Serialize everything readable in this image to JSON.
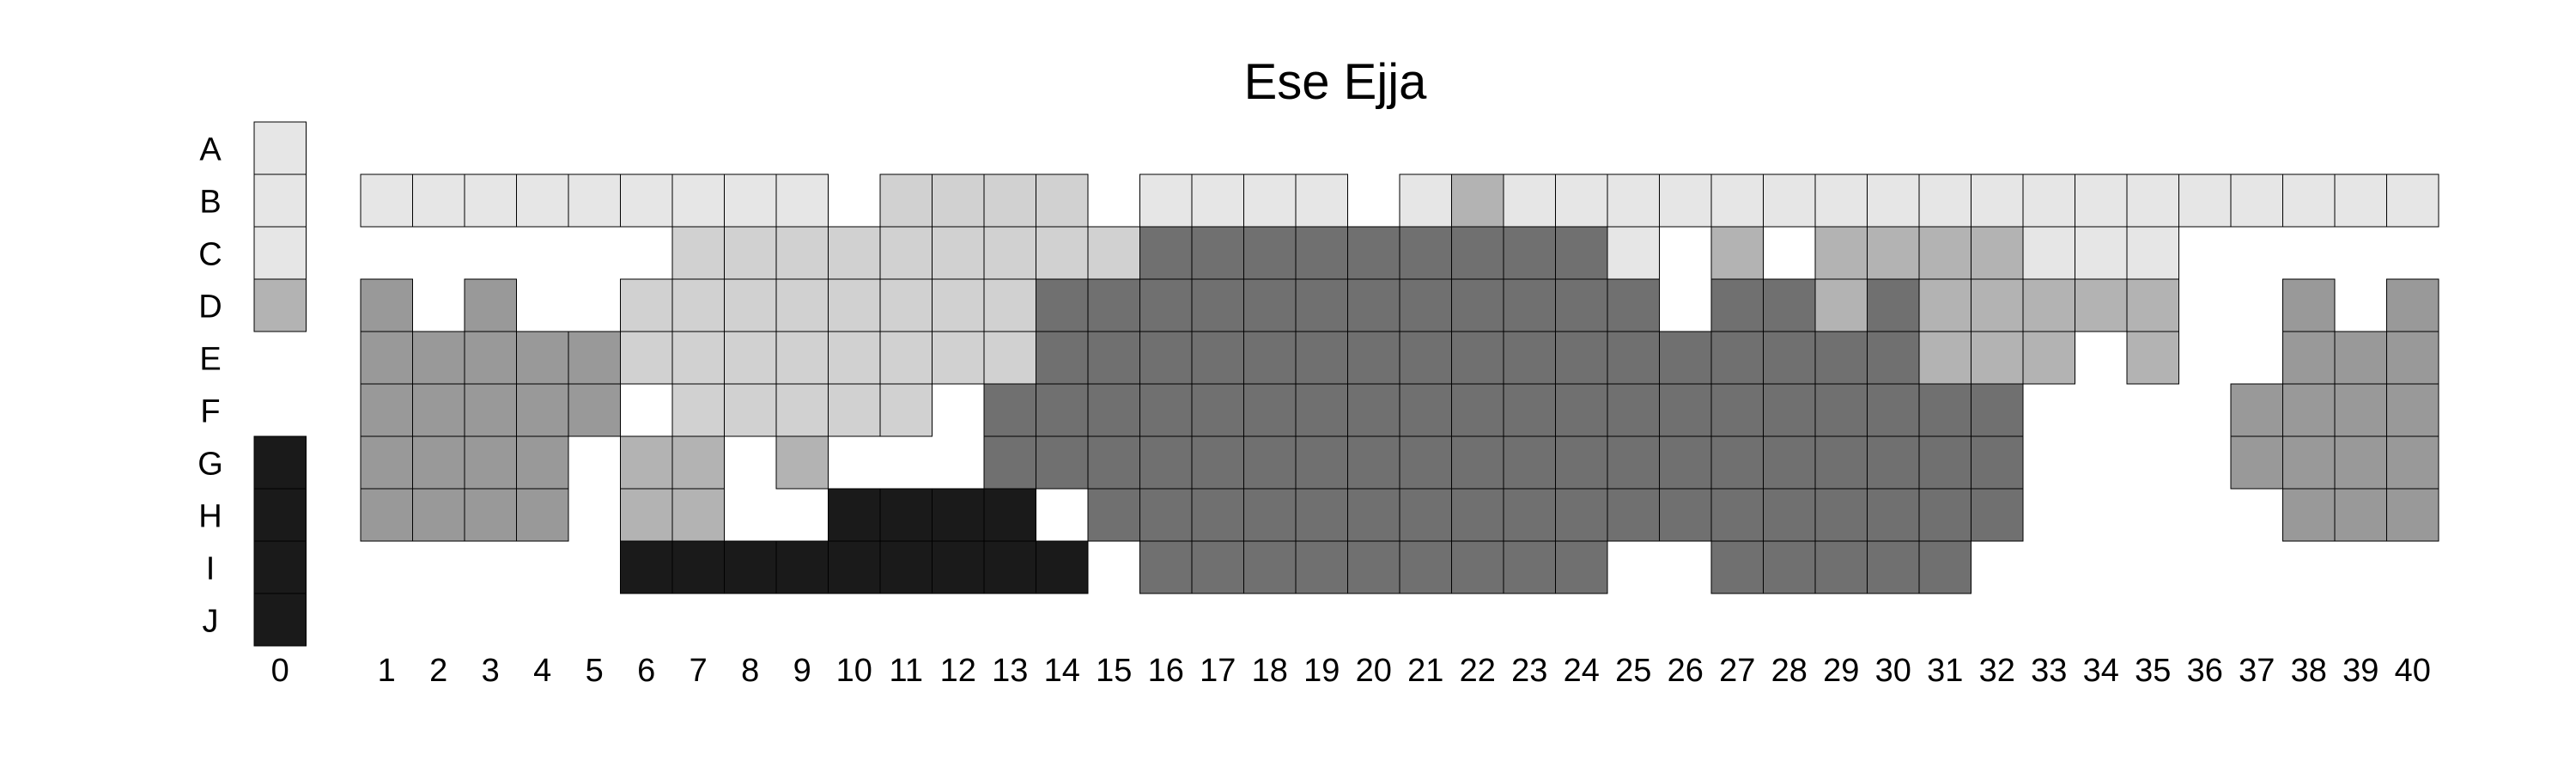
{
  "chart_data": {
    "type": "heatmap",
    "title": "Ese Ejja",
    "rows": [
      "A",
      "B",
      "C",
      "D",
      "E",
      "F",
      "G",
      "H",
      "I",
      "J"
    ],
    "columns": [
      "1",
      "2",
      "3",
      "4",
      "5",
      "6",
      "7",
      "8",
      "9",
      "10",
      "11",
      "12",
      "13",
      "14",
      "15",
      "16",
      "17",
      "18",
      "19",
      "20",
      "21",
      "22",
      "23",
      "24",
      "25",
      "26",
      "27",
      "28",
      "29",
      "30",
      "31",
      "32",
      "33",
      "34",
      "35",
      "36",
      "37",
      "38",
      "39",
      "40"
    ],
    "legend_column_label": "0",
    "legend_shades": [
      "L",
      "L",
      "L",
      "M",
      "",
      "",
      "K",
      "K",
      "K",
      "K"
    ],
    "palette": {
      "L": "#e6e6e6",
      "P": "#d1d1d1",
      "M": "#b3b3b3",
      "G": "#999999",
      "D": "#707070",
      "K": "#1a1a1a"
    },
    "grid": [
      "........................................",
      "LLLLLLLLL.PPPP.LLLL.LMLLLLLLLLLLLLLLLLLL",
      "......PPPPPPPPPDDDDDDDDDL.M.MMMMLLL.....",
      "G.G..PPPPPPPPDDDDDDDDDDDD.DDMDMMMMM..G.G",
      "GGGGGPPPPPPPPDDDDDDDDDDDDDDDDDMMM.M..GGGG",
      "GGGGG.PPPPP.DDDDDDDDDDDDDDDDDDDD....GGGGG",
      "GGGG.MM.M...DDDDDDDDDDDDDDDDDDDD....GGGGG",
      "GGGG.MM..KKKK.DDDDDDDDDDDDDDDDDD.....GGGG",
      ".....KKKKKKKKK.DDDDDDDDD..DDDDD..........",
      "........................................"
    ]
  }
}
